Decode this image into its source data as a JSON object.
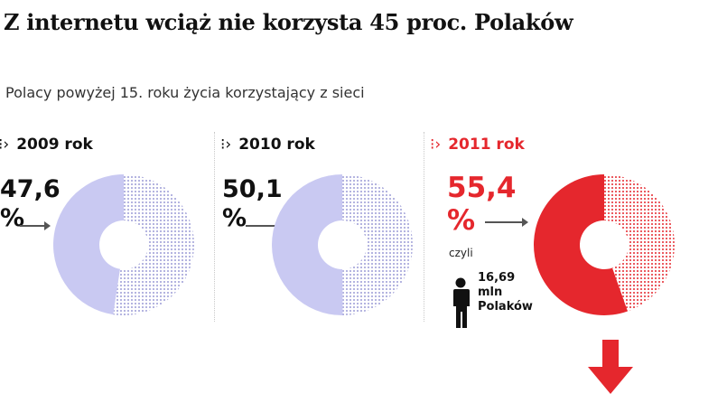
{
  "title": "Z internetu wciąż nie korzysta 45 proc. Polaków",
  "subtitle": "Polacy powyżej 15. roku życia korzystający z sieci",
  "colors": {
    "past_fill": "#c9c9f2",
    "past_dots": "#9c9cd6",
    "current_fill": "#e5272d",
    "current_dots": "#e5272d",
    "current_text": "#e5272d"
  },
  "chart_data": {
    "type": "pie",
    "donut": true,
    "categories": [
      "2009 rok",
      "2010 rok",
      "2011 rok"
    ],
    "series": [
      {
        "values": [
          47.6,
          50.1,
          55.4
        ]
      }
    ],
    "value_labels": [
      "47,6",
      "50,1",
      "55,4"
    ],
    "unit": "%",
    "panels": [
      {
        "year": "2009 rok",
        "value": 47.6,
        "label": "47,6",
        "unit": "%"
      },
      {
        "year": "2010 rok",
        "value": 50.1,
        "label": "50,1",
        "unit": "%"
      },
      {
        "year": "2011 rok",
        "value": 55.4,
        "label": "55,4",
        "unit": "%",
        "highlight": true
      }
    ]
  },
  "annotation": {
    "czyli": "czyli",
    "people_value": "16,69",
    "people_unit": "mln",
    "people_label": "Polaków",
    "icon": "person-icon"
  },
  "decorations": {
    "down_arrow_icon": "arrow-down-icon",
    "year_marker_icon": "dotted-chevron-icon"
  }
}
